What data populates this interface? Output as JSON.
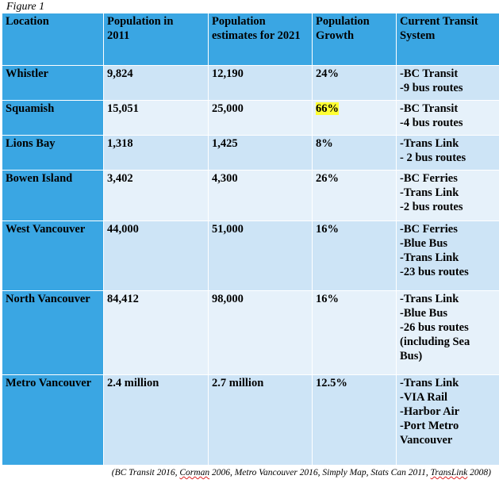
{
  "caption": "Figure 1",
  "headers": {
    "location": "Location",
    "population_2011": [
      "Population in",
      "2011"
    ],
    "estimates_2021": [
      "Population",
      "estimates for 2021"
    ],
    "growth": [
      "Population",
      "Growth"
    ],
    "transit": [
      "Current Transit",
      "System"
    ]
  },
  "rows": [
    {
      "location": "Whistler",
      "pop2011": "9,824",
      "est2021": "12,190",
      "growth": "24%",
      "growth_highlight": false,
      "transit": [
        "-BC Transit",
        "-9 bus routes"
      ]
    },
    {
      "location": "Squamish",
      "pop2011": "15,051",
      "est2021": "25,000",
      "growth": "66%",
      "growth_highlight": true,
      "transit": [
        "-BC Transit",
        "-4 bus routes"
      ]
    },
    {
      "location": "Lions Bay",
      "pop2011": "1,318",
      "est2021": "1,425",
      "growth": "8%",
      "growth_highlight": false,
      "transit": [
        "-Trans Link",
        "- 2 bus routes"
      ]
    },
    {
      "location": "Bowen Island",
      "pop2011": "3,402",
      "est2021": "4,300",
      "growth": "26%",
      "growth_highlight": false,
      "transit": [
        "-BC Ferries",
        "-Trans Link",
        "-2 bus routes"
      ]
    },
    {
      "location": "West Vancouver",
      "pop2011": "44,000",
      "est2021": "51,000",
      "growth": "16%",
      "growth_highlight": false,
      "transit": [
        "-BC Ferries",
        "-Blue Bus",
        "-Trans Link",
        "-23 bus routes"
      ]
    },
    {
      "location": "North Vancouver",
      "pop2011": "84,412",
      "est2021": "98,000",
      "growth": "16%",
      "growth_highlight": false,
      "transit": [
        "-Trans Link",
        "-Blue Bus",
        "-26 bus routes",
        "(including Sea",
        "Bus)"
      ]
    },
    {
      "location": "Metro Vancouver",
      "pop2011": "2.4 million",
      "est2021": "2.7 million",
      "growth": "12.5%",
      "growth_highlight": false,
      "transit": [
        "-Trans Link",
        "-VIA Rail",
        "-Harbor Air",
        "-Port Metro",
        "Vancouver"
      ]
    }
  ],
  "source": {
    "prefix": "(BC Transit 2016, ",
    "corman": "Corman",
    "middle": " 2006, Metro Vancouver 2016, Simply Map, Stats Can 2011, ",
    "translink": "TransLink",
    "suffix": " 2008)"
  },
  "colors": {
    "header_bg": "#3aa6e3",
    "row_odd": "#cde4f6",
    "row_even": "#e6f1fa",
    "highlight": "#ffff33"
  }
}
